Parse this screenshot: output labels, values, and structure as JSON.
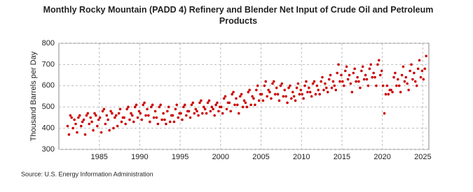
{
  "chart_data": {
    "type": "scatter",
    "title": "Monthly Rocky Mountain (PADD 4) Refinery and Blender Net Input of Crude Oil and Petroleum Products",
    "ylabel": "Thousand Barrels per Day",
    "source": "Source: U.S. Energy Information Administration",
    "color": "#cc0000",
    "grid": true,
    "xlim": [
      1980,
      2025.75
    ],
    "xticks": [
      1985,
      1990,
      1995,
      2000,
      2005,
      2010,
      2015,
      2020,
      2025
    ],
    "ylim": [
      300,
      800
    ],
    "yticks": [
      300,
      400,
      500,
      600,
      700,
      800
    ],
    "x": [
      1981.08,
      1981.25,
      1981.42,
      1981.58,
      1981.75,
      1981.92,
      1982.08,
      1982.25,
      1982.42,
      1982.58,
      1982.75,
      1982.92,
      1983.08,
      1983.25,
      1983.42,
      1983.58,
      1983.75,
      1983.92,
      1984.08,
      1984.25,
      1984.42,
      1984.58,
      1984.75,
      1984.92,
      1985.08,
      1985.25,
      1985.42,
      1985.58,
      1985.75,
      1985.92,
      1986.08,
      1986.25,
      1986.42,
      1986.58,
      1986.75,
      1986.92,
      1987.08,
      1987.25,
      1987.42,
      1987.58,
      1987.75,
      1987.92,
      1988.08,
      1988.25,
      1988.42,
      1988.58,
      1988.75,
      1988.92,
      1989.08,
      1989.25,
      1989.42,
      1989.58,
      1989.75,
      1989.92,
      1990.08,
      1990.25,
      1990.42,
      1990.58,
      1990.75,
      1990.92,
      1991.08,
      1991.25,
      1991.42,
      1991.58,
      1991.75,
      1991.92,
      1992.08,
      1992.25,
      1992.42,
      1992.58,
      1992.75,
      1992.92,
      1993.08,
      1993.25,
      1993.42,
      1993.58,
      1993.75,
      1993.92,
      1994.08,
      1994.25,
      1994.42,
      1994.58,
      1994.75,
      1994.92,
      1995.08,
      1995.25,
      1995.42,
      1995.58,
      1995.75,
      1995.92,
      1996.08,
      1996.25,
      1996.42,
      1996.58,
      1996.75,
      1996.92,
      1997.08,
      1997.25,
      1997.42,
      1997.58,
      1997.75,
      1997.92,
      1998.08,
      1998.25,
      1998.42,
      1998.58,
      1998.75,
      1998.92,
      1999.08,
      1999.25,
      1999.42,
      1999.58,
      1999.75,
      1999.92,
      2000.08,
      2000.25,
      2000.42,
      2000.58,
      2000.75,
      2000.92,
      2001.08,
      2001.25,
      2001.42,
      2001.58,
      2001.75,
      2001.92,
      2002.08,
      2002.25,
      2002.42,
      2002.58,
      2002.75,
      2002.92,
      2003.08,
      2003.25,
      2003.42,
      2003.58,
      2003.75,
      2003.92,
      2004.08,
      2004.25,
      2004.42,
      2004.58,
      2004.75,
      2004.92,
      2005.08,
      2005.25,
      2005.42,
      2005.58,
      2005.75,
      2005.92,
      2006.08,
      2006.25,
      2006.42,
      2006.58,
      2006.75,
      2006.92,
      2007.08,
      2007.25,
      2007.42,
      2007.58,
      2007.75,
      2007.92,
      2008.08,
      2008.25,
      2008.42,
      2008.58,
      2008.75,
      2008.92,
      2009.08,
      2009.25,
      2009.42,
      2009.58,
      2009.75,
      2009.92,
      2010.08,
      2010.25,
      2010.42,
      2010.58,
      2010.75,
      2010.92,
      2011.08,
      2011.25,
      2011.42,
      2011.58,
      2011.75,
      2011.92,
      2012.08,
      2012.25,
      2012.42,
      2012.58,
      2012.75,
      2012.92,
      2013.08,
      2013.25,
      2013.42,
      2013.58,
      2013.75,
      2013.92,
      2014.08,
      2014.25,
      2014.42,
      2014.58,
      2014.75,
      2014.92,
      2015.08,
      2015.25,
      2015.42,
      2015.58,
      2015.75,
      2015.92,
      2016.08,
      2016.25,
      2016.42,
      2016.58,
      2016.75,
      2016.92,
      2017.08,
      2017.25,
      2017.42,
      2017.58,
      2017.75,
      2017.92,
      2018.08,
      2018.25,
      2018.42,
      2018.58,
      2018.75,
      2018.92,
      2019.08,
      2019.25,
      2019.42,
      2019.58,
      2019.75,
      2019.92,
      2020.08,
      2020.25,
      2020.42,
      2020.58,
      2020.75,
      2020.92,
      2021.08,
      2021.25,
      2021.42,
      2021.58,
      2021.75,
      2021.92,
      2022.08,
      2022.25,
      2022.42,
      2022.58,
      2022.75,
      2022.92,
      2023.08,
      2023.25,
      2023.42,
      2023.58,
      2023.75,
      2023.92,
      2024.08,
      2024.25,
      2024.42,
      2024.58,
      2024.75,
      2024.92,
      2025.08,
      2025.25,
      2025.42
    ],
    "values": [
      410,
      370,
      460,
      450,
      400,
      440,
      420,
      380,
      450,
      460,
      410,
      430,
      440,
      370,
      460,
      470,
      420,
      450,
      430,
      390,
      470,
      460,
      410,
      440,
      450,
      380,
      480,
      490,
      420,
      460,
      440,
      390,
      480,
      470,
      400,
      450,
      460,
      410,
      470,
      490,
      430,
      450,
      450,
      420,
      490,
      500,
      440,
      470,
      460,
      430,
      500,
      510,
      450,
      480,
      470,
      440,
      510,
      520,
      460,
      490,
      460,
      430,
      500,
      510,
      450,
      480,
      450,
      420,
      500,
      510,
      440,
      470,
      440,
      420,
      480,
      500,
      430,
      460,
      460,
      430,
      490,
      510,
      450,
      470,
      470,
      440,
      500,
      510,
      460,
      480,
      480,
      450,
      510,
      520,
      470,
      490,
      480,
      460,
      520,
      530,
      470,
      500,
      490,
      470,
      520,
      530,
      480,
      500,
      490,
      460,
      510,
      520,
      480,
      500,
      500,
      470,
      540,
      550,
      490,
      520,
      520,
      480,
      560,
      570,
      510,
      540,
      510,
      470,
      550,
      560,
      500,
      530,
      520,
      500,
      570,
      580,
      510,
      550,
      540,
      510,
      580,
      600,
      530,
      560,
      560,
      530,
      600,
      620,
      550,
      580,
      570,
      540,
      610,
      620,
      560,
      590,
      560,
      530,
      600,
      610,
      550,
      580,
      550,
      520,
      590,
      600,
      540,
      570,
      550,
      530,
      590,
      610,
      560,
      580,
      560,
      540,
      600,
      620,
      570,
      590,
      570,
      550,
      610,
      620,
      560,
      600,
      580,
      560,
      620,
      640,
      580,
      610,
      590,
      570,
      630,
      650,
      590,
      620,
      600,
      580,
      660,
      700,
      620,
      650,
      620,
      600,
      670,
      690,
      630,
      650,
      610,
      570,
      660,
      680,
      620,
      640,
      620,
      590,
      670,
      690,
      630,
      650,
      630,
      600,
      680,
      700,
      640,
      660,
      640,
      600,
      700,
      720,
      650,
      670,
      600,
      470,
      560,
      600,
      560,
      580,
      580,
      570,
      640,
      660,
      600,
      630,
      600,
      570,
      650,
      690,
      620,
      640,
      610,
      580,
      670,
      700,
      630,
      660,
      620,
      600,
      680,
      720,
      640,
      670,
      630,
      680,
      740
    ]
  }
}
